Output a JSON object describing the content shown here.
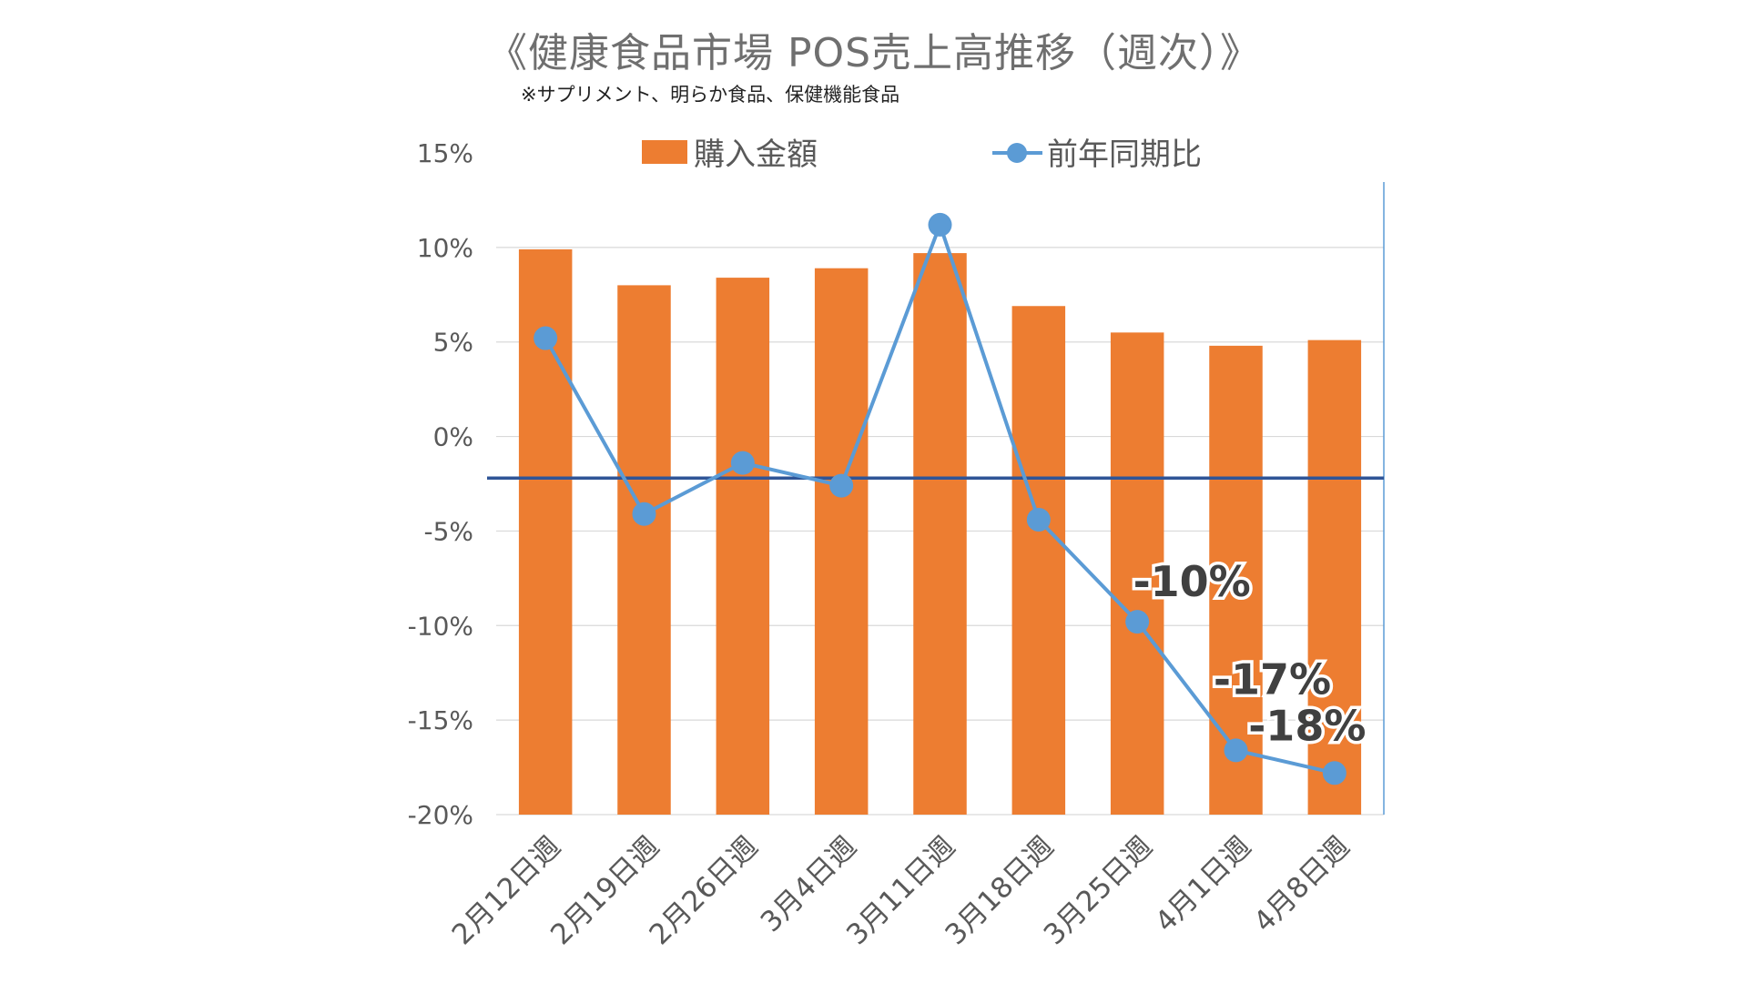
{
  "title": "《健康食品市場 POS売上高推移（週次）》",
  "subtitle": "※サプリメント、明らか食品、保健機能食品",
  "colors": {
    "bar": "#ED7D31",
    "line": "#5B9BD5",
    "reference_line": "#2F5597",
    "grid": "#D9D9D9",
    "axis_text": "#595959"
  },
  "chart_data": {
    "type": "bar",
    "categories": [
      "2月12日週",
      "2月19日週",
      "2月26日週",
      "3月4日週",
      "3月11日週",
      "3月18日週",
      "3月25日週",
      "4月1日週",
      "4月8日週"
    ],
    "series": [
      {
        "name": "購入金額",
        "type": "bar",
        "values": [
          9.9,
          8.0,
          8.4,
          8.9,
          9.7,
          6.9,
          5.5,
          4.8,
          5.1
        ]
      },
      {
        "name": "前年同期比",
        "type": "line",
        "values": [
          5.2,
          -4.1,
          -1.4,
          -2.6,
          11.2,
          -4.4,
          -9.8,
          -16.6,
          -17.8
        ]
      }
    ],
    "reference_line_value": -2.2,
    "ylim": [
      -20,
      15
    ],
    "yticks": [
      15,
      10,
      5,
      0,
      -5,
      -10,
      -15,
      -20
    ],
    "ytick_labels": [
      "15%",
      "10%",
      "5%",
      "0%",
      "-5%",
      "-10%",
      "-15%",
      "-20%"
    ],
    "annotations": [
      {
        "index": 6,
        "text": "-10%"
      },
      {
        "index": 7,
        "text": "-17%"
      },
      {
        "index": 8,
        "text": "-18%"
      }
    ],
    "legend_position": "top-center",
    "grid": true
  }
}
